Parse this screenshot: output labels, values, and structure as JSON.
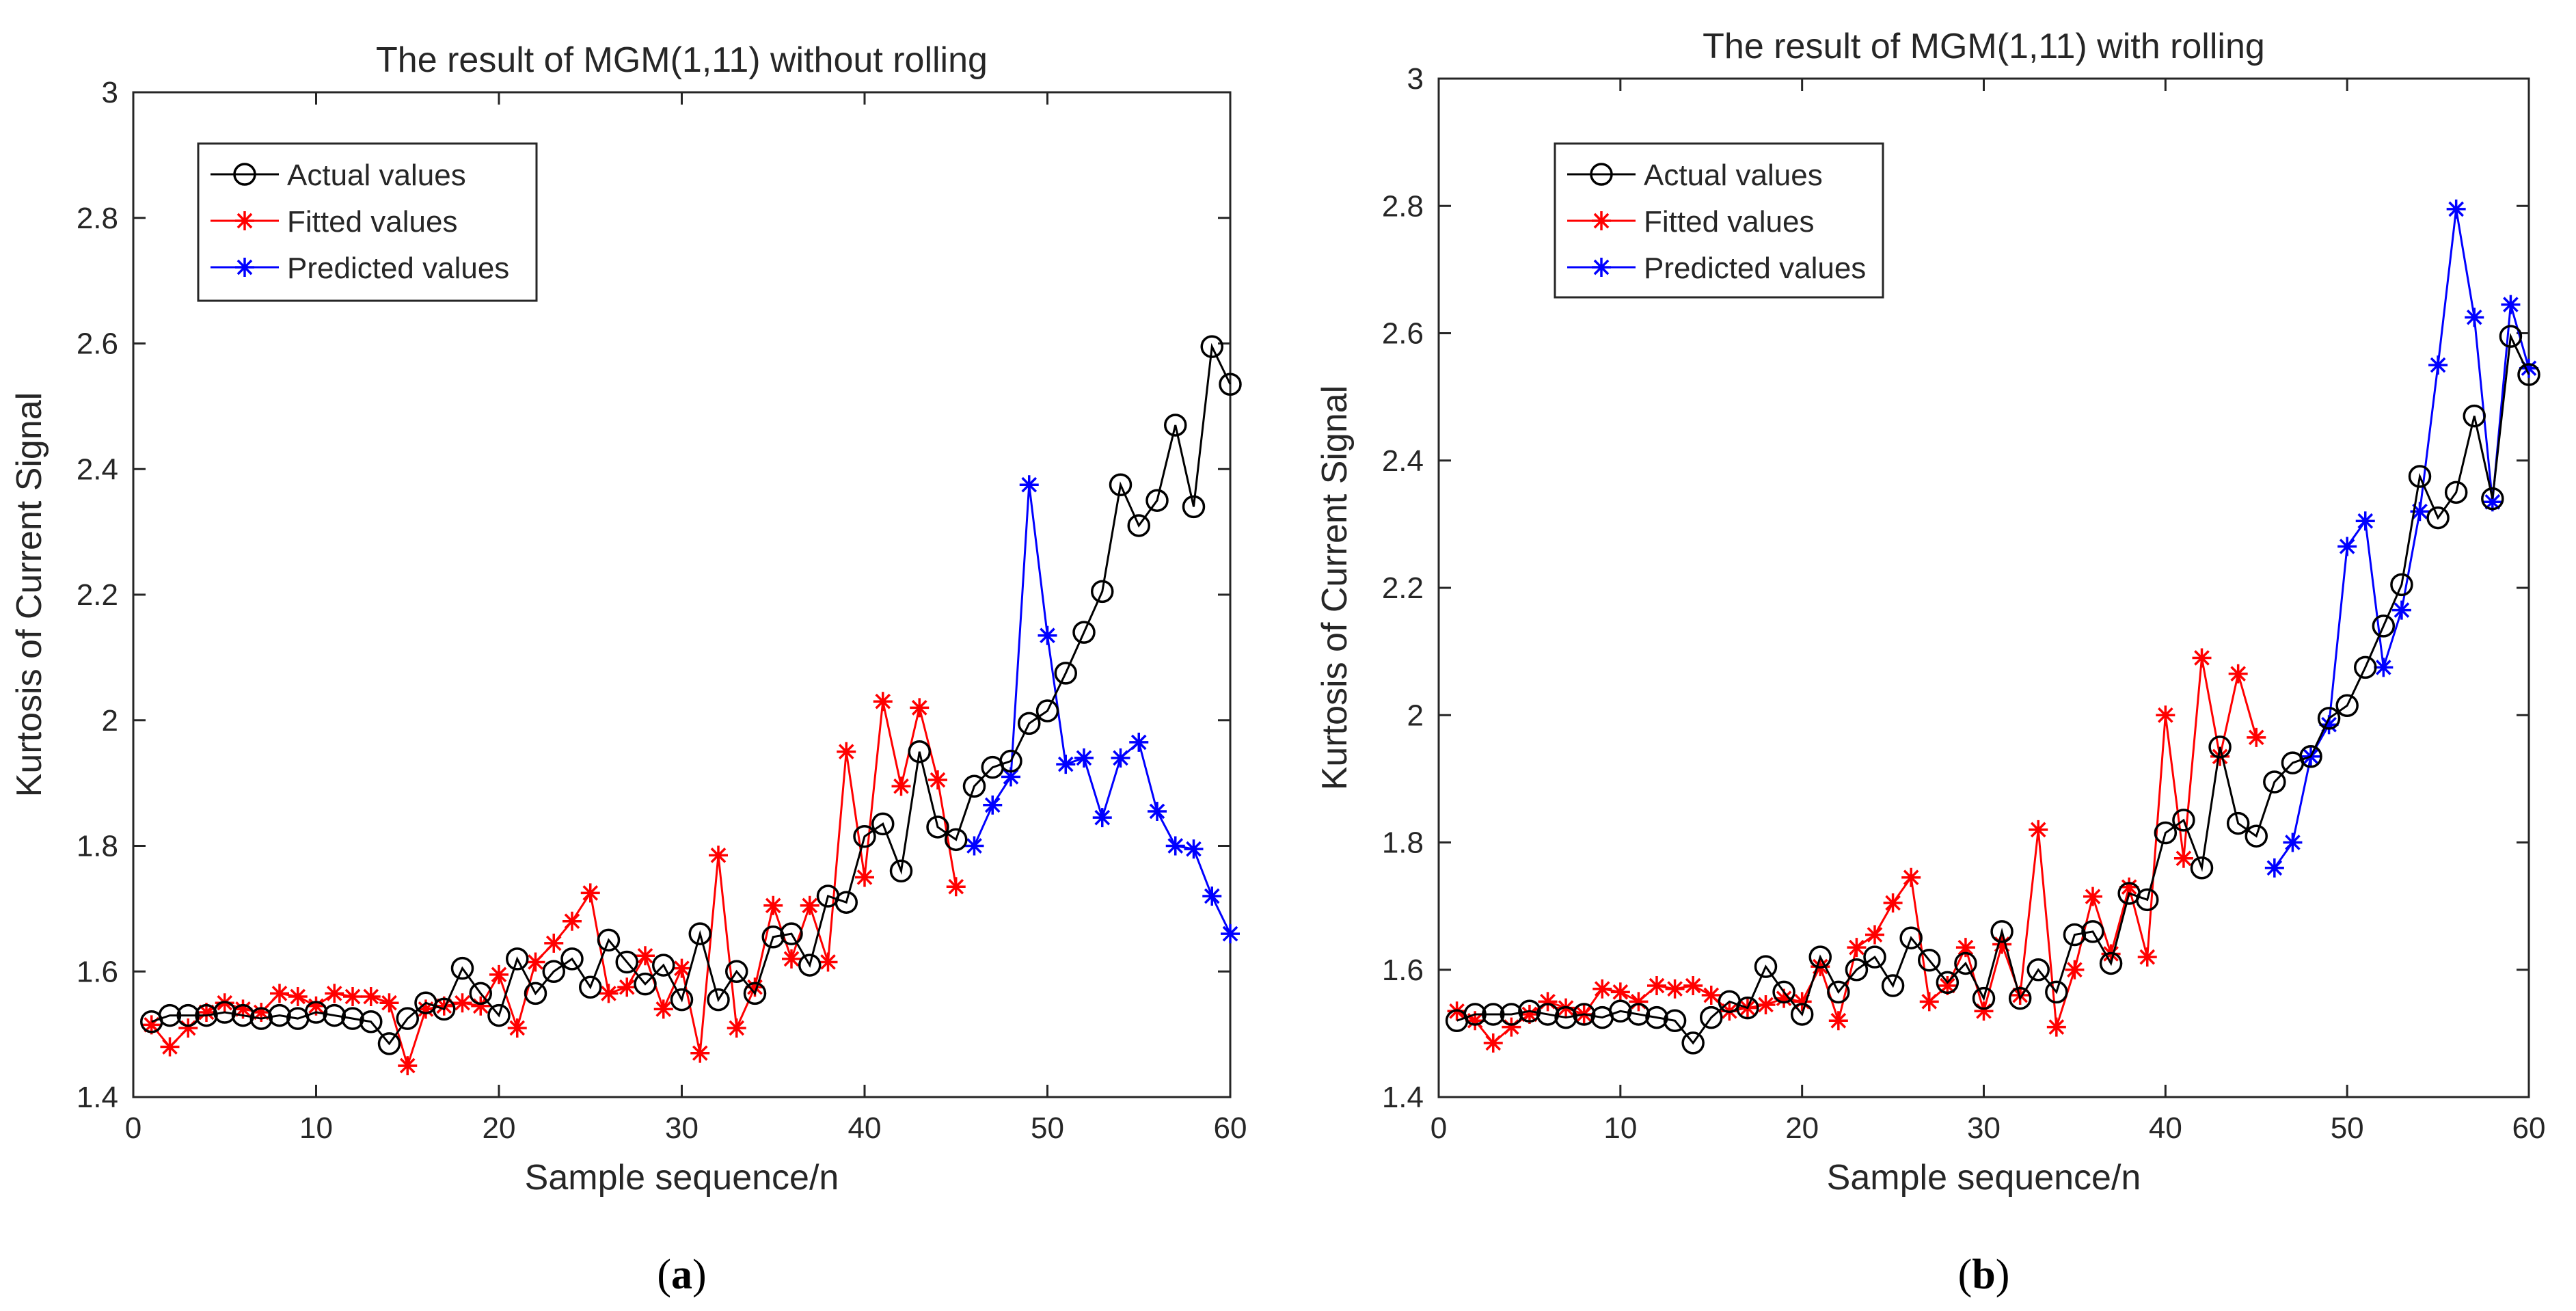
{
  "chart_data": [
    {
      "type": "line",
      "title": "The result of MGM(1,11) without rolling",
      "xlabel": "Sample sequence/n",
      "ylabel": "Kurtosis of Current Signal",
      "panel_label": "a",
      "xlim": [
        0,
        60
      ],
      "ylim": [
        1.4,
        3
      ],
      "xticks": [
        "0",
        "10",
        "20",
        "30",
        "40",
        "50",
        "60"
      ],
      "yticks": [
        "1.4",
        "1.6",
        "1.8",
        "2",
        "2.2",
        "2.4",
        "2.6",
        "2.8",
        "3"
      ],
      "grid": false,
      "legend_position": "top-left",
      "series": [
        {
          "name": "Actual values",
          "color": "#000000",
          "marker": "circle",
          "x": [
            1,
            2,
            3,
            4,
            5,
            6,
            7,
            8,
            9,
            10,
            11,
            12,
            13,
            14,
            15,
            16,
            17,
            18,
            19,
            20,
            21,
            22,
            23,
            24,
            25,
            26,
            27,
            28,
            29,
            30,
            31,
            32,
            33,
            34,
            35,
            36,
            37,
            38,
            39,
            40,
            41,
            42,
            43,
            44,
            45,
            46,
            47,
            48,
            49,
            50,
            51,
            52,
            53,
            54,
            55,
            56,
            57,
            58,
            59,
            60
          ],
          "y": [
            1.52,
            1.53,
            1.53,
            1.53,
            1.535,
            1.53,
            1.525,
            1.53,
            1.525,
            1.535,
            1.53,
            1.525,
            1.52,
            1.485,
            1.525,
            1.55,
            1.54,
            1.605,
            1.565,
            1.53,
            1.62,
            1.565,
            1.6,
            1.62,
            1.575,
            1.65,
            1.615,
            1.58,
            1.61,
            1.555,
            1.66,
            1.555,
            1.6,
            1.565,
            1.655,
            1.66,
            1.61,
            1.72,
            1.71,
            1.815,
            1.835,
            1.76,
            1.95,
            1.83,
            1.81,
            1.895,
            1.925,
            1.935,
            1.995,
            2.015,
            2.075,
            2.14,
            2.205,
            2.375,
            2.31,
            2.35,
            2.47,
            2.34,
            2.595,
            2.535
          ]
        },
        {
          "name": "Fitted values",
          "color": "#ff0000",
          "marker": "star",
          "x": [
            1,
            2,
            3,
            4,
            5,
            6,
            7,
            8,
            9,
            10,
            11,
            12,
            13,
            14,
            15,
            16,
            17,
            18,
            19,
            20,
            21,
            22,
            23,
            24,
            25,
            26,
            27,
            28,
            29,
            30,
            31,
            32,
            33,
            34,
            35,
            36,
            37,
            38,
            39,
            40,
            41,
            42,
            43,
            44,
            45
          ],
          "y": [
            1.515,
            1.48,
            1.51,
            1.535,
            1.55,
            1.54,
            1.535,
            1.565,
            1.56,
            1.545,
            1.565,
            1.56,
            1.56,
            1.55,
            1.45,
            1.54,
            1.545,
            1.55,
            1.545,
            1.595,
            1.51,
            1.615,
            1.645,
            1.68,
            1.725,
            1.565,
            1.575,
            1.625,
            1.54,
            1.605,
            1.47,
            1.785,
            1.51,
            1.575,
            1.705,
            1.62,
            1.705,
            1.615,
            1.95,
            1.75,
            2.03,
            1.895,
            2.02,
            1.905,
            1.735
          ]
        },
        {
          "name": "Predicted values",
          "color": "#0000ff",
          "marker": "star",
          "x": [
            46,
            47,
            48,
            49,
            50,
            51,
            52,
            53,
            54,
            55,
            56,
            57,
            58,
            59,
            60
          ],
          "y": [
            1.8,
            1.865,
            1.91,
            2.375,
            2.135,
            1.93,
            1.94,
            1.845,
            1.94,
            1.965,
            1.855,
            1.8,
            1.795,
            1.72,
            1.66
          ]
        }
      ]
    },
    {
      "type": "line",
      "title": "The result of MGM(1,11) with rolling",
      "xlabel": "Sample sequence/n",
      "ylabel": "Kurtosis of Current Signal",
      "panel_label": "b",
      "xlim": [
        0,
        60
      ],
      "ylim": [
        1.4,
        3
      ],
      "xticks": [
        "0",
        "10",
        "20",
        "30",
        "40",
        "50",
        "60"
      ],
      "yticks": [
        "1.4",
        "1.6",
        "1.8",
        "2",
        "2.2",
        "2.4",
        "2.6",
        "2.8",
        "3"
      ],
      "grid": false,
      "legend_position": "top-left",
      "series": [
        {
          "name": "Actual values",
          "color": "#000000",
          "marker": "circle",
          "x": [
            1,
            2,
            3,
            4,
            5,
            6,
            7,
            8,
            9,
            10,
            11,
            12,
            13,
            14,
            15,
            16,
            17,
            18,
            19,
            20,
            21,
            22,
            23,
            24,
            25,
            26,
            27,
            28,
            29,
            30,
            31,
            32,
            33,
            34,
            35,
            36,
            37,
            38,
            39,
            40,
            41,
            42,
            43,
            44,
            45,
            46,
            47,
            48,
            49,
            50,
            51,
            52,
            53,
            54,
            55,
            56,
            57,
            58,
            59,
            60
          ],
          "y": [
            1.52,
            1.53,
            1.53,
            1.53,
            1.535,
            1.53,
            1.525,
            1.53,
            1.525,
            1.535,
            1.53,
            1.525,
            1.52,
            1.485,
            1.525,
            1.55,
            1.54,
            1.605,
            1.565,
            1.53,
            1.62,
            1.565,
            1.6,
            1.62,
            1.575,
            1.65,
            1.615,
            1.58,
            1.61,
            1.555,
            1.66,
            1.555,
            1.6,
            1.565,
            1.655,
            1.66,
            1.61,
            1.72,
            1.71,
            1.815,
            1.835,
            1.76,
            1.95,
            1.83,
            1.81,
            1.895,
            1.925,
            1.935,
            1.995,
            2.015,
            2.075,
            2.14,
            2.205,
            2.375,
            2.31,
            2.35,
            2.47,
            2.34,
            2.595,
            2.535
          ]
        },
        {
          "name": "Fitted values",
          "color": "#ff0000",
          "marker": "star",
          "x": [
            1,
            2,
            3,
            4,
            5,
            6,
            7,
            8,
            9,
            10,
            11,
            12,
            13,
            14,
            15,
            16,
            17,
            18,
            19,
            20,
            21,
            22,
            23,
            24,
            25,
            26,
            27,
            28,
            29,
            30,
            31,
            32,
            33,
            34,
            35,
            36,
            37,
            38,
            39,
            40,
            41,
            42,
            43,
            44,
            45
          ],
          "y": [
            1.535,
            1.52,
            1.485,
            1.51,
            1.53,
            1.55,
            1.54,
            1.53,
            1.57,
            1.565,
            1.55,
            1.575,
            1.57,
            1.575,
            1.56,
            1.535,
            1.54,
            1.545,
            1.555,
            1.55,
            1.605,
            1.52,
            1.635,
            1.655,
            1.705,
            1.745,
            1.55,
            1.575,
            1.635,
            1.535,
            1.64,
            1.56,
            1.82,
            1.51,
            1.6,
            1.715,
            1.625,
            1.73,
            1.62,
            2.0,
            1.775,
            2.09,
            1.935,
            2.065,
            1.965
          ]
        },
        {
          "name": "Predicted values",
          "color": "#0000ff",
          "marker": "star",
          "x": [
            46,
            47,
            48,
            49,
            50,
            51,
            52,
            53,
            54,
            55,
            56,
            57,
            58,
            59,
            60
          ],
          "y": [
            1.76,
            1.8,
            1.935,
            1.985,
            2.265,
            2.305,
            2.075,
            2.165,
            2.32,
            2.55,
            2.795,
            2.625,
            2.335,
            2.645,
            2.545
          ]
        }
      ]
    }
  ]
}
